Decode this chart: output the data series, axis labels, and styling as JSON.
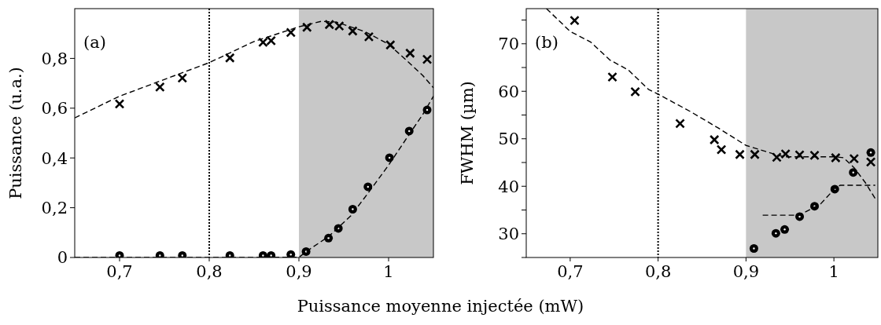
{
  "chart_data": [
    {
      "type": "scatter",
      "xlabel": "Puissance moyenne injectée (mW)",
      "ylabel": "Puissance (u.a.)",
      "annotations": [
        "(a)"
      ],
      "xlim": [
        0.65,
        1.05
      ],
      "ylim": [
        0,
        1
      ],
      "xticks": [
        {
          "value": 0.7,
          "label": "0,7"
        },
        {
          "value": 0.8,
          "label": "0,8"
        },
        {
          "value": 0.9,
          "label": "0,9"
        },
        1
      ],
      "yticks": [
        0,
        {
          "value": 0.2,
          "label": "0,2"
        },
        {
          "value": 0.4,
          "label": "0,4"
        },
        {
          "value": 0.6,
          "label": "0,6"
        },
        {
          "value": 0.8,
          "label": "0,8"
        }
      ],
      "grid": false,
      "ref_lines": [
        {
          "axis": "x",
          "value": 0.8,
          "color": "#000000",
          "line_style": "dotted"
        }
      ],
      "bands": [
        {
          "axis": "x",
          "from": 0.9,
          "to": 1.05,
          "color": "#c8c8c8"
        }
      ],
      "series": [
        {
          "type": "scatter",
          "marker": "cross",
          "color": "#000000",
          "x": [
            0.7,
            0.745,
            0.77,
            0.823,
            0.86,
            0.869,
            0.891,
            0.909,
            0.934,
            0.945,
            0.96,
            0.978,
            1.002,
            1.024,
            1.043
          ],
          "values": [
            0.617,
            0.685,
            0.721,
            0.802,
            0.865,
            0.871,
            0.904,
            0.925,
            0.936,
            0.93,
            0.91,
            0.887,
            0.854,
            0.821,
            0.796
          ]
        },
        {
          "type": "scatter",
          "marker": "circle",
          "color": "#000000",
          "x": [
            0.7,
            0.745,
            0.77,
            0.823,
            0.86,
            0.869,
            0.891,
            0.908,
            0.933,
            0.944,
            0.96,
            0.977,
            1.001,
            1.023,
            1.043
          ],
          "values": [
            0.008,
            0.008,
            0.008,
            0.008,
            0.008,
            0.008,
            0.012,
            0.024,
            0.078,
            0.117,
            0.194,
            0.284,
            0.401,
            0.508,
            0.593
          ]
        },
        {
          "type": "line",
          "marker": "none",
          "line_style": "dashed",
          "color": "#000000",
          "x": [
            0.65,
            0.7,
            0.8,
            0.85,
            0.9,
            0.925,
            0.942,
            0.974,
            1.0,
            1.021,
            1.038,
            1.05
          ],
          "values": [
            0.561,
            0.648,
            0.783,
            0.868,
            0.927,
            0.949,
            0.946,
            0.907,
            0.857,
            0.789,
            0.732,
            0.682
          ]
        },
        {
          "type": "line",
          "marker": "none",
          "line_style": "dashed",
          "color": "#000000",
          "x": [
            0.65,
            0.8,
            0.9,
            0.912,
            0.933,
            0.958,
            0.977,
            1.0,
            1.021,
            1.038,
            1.05
          ],
          "values": [
            0,
            0,
            0.001,
            0.033,
            0.084,
            0.168,
            0.258,
            0.371,
            0.484,
            0.574,
            0.648
          ]
        }
      ]
    },
    {
      "type": "scatter",
      "ylabel": "FWHM (µm)",
      "annotations": [
        "(b)"
      ],
      "xlim": [
        0.65,
        1.05
      ],
      "ylim": [
        25,
        77.4
      ],
      "xticks": [
        {
          "value": 0.7,
          "label": "0,7"
        },
        {
          "value": 0.8,
          "label": "0,8"
        },
        {
          "value": 0.9,
          "label": "0,9"
        },
        1
      ],
      "yticks": [
        {
          "value": 25,
          "label": null
        },
        30,
        {
          "value": 35,
          "label": null
        },
        40,
        {
          "value": 45,
          "label": null
        },
        50,
        {
          "value": 55,
          "label": null
        },
        60,
        {
          "value": 65,
          "label": null
        },
        70,
        {
          "value": 75,
          "label": null
        }
      ],
      "grid": false,
      "ref_lines": [
        {
          "axis": "x",
          "value": 0.8,
          "color": "#000000",
          "line_style": "dotted"
        }
      ],
      "bands": [
        {
          "axis": "x",
          "from": 0.9,
          "to": 1.05,
          "color": "#c8c8c8"
        }
      ],
      "series": [
        {
          "type": "scatter",
          "marker": "cross",
          "color": "#000000",
          "x": [
            0.705,
            0.748,
            0.774,
            0.825,
            0.864,
            0.872,
            0.893,
            0.91,
            0.935,
            0.945,
            0.961,
            0.978,
            1.002,
            1.023,
            1.042
          ],
          "values": [
            74.9,
            63.0,
            59.9,
            53.2,
            49.8,
            47.7,
            46.7,
            46.7,
            46.1,
            46.8,
            46.6,
            46.5,
            46.0,
            45.8,
            45.1
          ]
        },
        {
          "type": "scatter",
          "marker": "circle",
          "color": "#000000",
          "x": [
            0.909,
            0.934,
            0.944,
            0.961,
            0.978,
            1.001,
            1.022,
            1.042
          ],
          "values": [
            26.9,
            30.1,
            30.9,
            33.6,
            35.8,
            39.4,
            42.9,
            47.1
          ]
        },
        {
          "type": "line",
          "marker": "none",
          "line_style": "dashed",
          "color": "#000000",
          "x": [
            0.673,
            0.7,
            0.723,
            0.745,
            0.766,
            0.789,
            0.8,
            0.837,
            0.869,
            0.9,
            0.935,
            0.944,
            1.001,
            1.011,
            1.023,
            1.036,
            1.047
          ],
          "values": [
            77.4,
            72.6,
            70.4,
            66.6,
            64.5,
            60.4,
            59.4,
            55.7,
            52.2,
            48.6,
            46.6,
            46.2,
            46.2,
            46.0,
            43.9,
            40.7,
            37.4
          ]
        },
        {
          "type": "line",
          "marker": "none",
          "line_style": "dashed",
          "color": "#000000",
          "x": [
            0.919,
            0.96,
            0.976,
            0.985,
            1.001,
            1.007,
            1.047
          ],
          "values": [
            33.9,
            33.9,
            35.4,
            36.3,
            39.5,
            40.2,
            40.2
          ]
        }
      ]
    }
  ]
}
